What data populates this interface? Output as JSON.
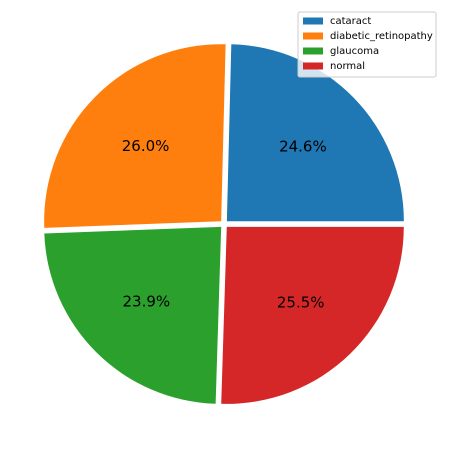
{
  "chart_data": {
    "type": "pie",
    "categories": [
      "cataract",
      "diabetic_retinopathy",
      "glaucoma",
      "normal"
    ],
    "values": [
      24.6,
      26.0,
      23.9,
      25.5
    ],
    "value_labels": [
      "24.6%",
      "26.0%",
      "23.9%",
      "25.5%"
    ],
    "colors": [
      "#1f77b4",
      "#ff7f0e",
      "#2ca02c",
      "#d62728"
    ],
    "legend": "upper right"
  }
}
